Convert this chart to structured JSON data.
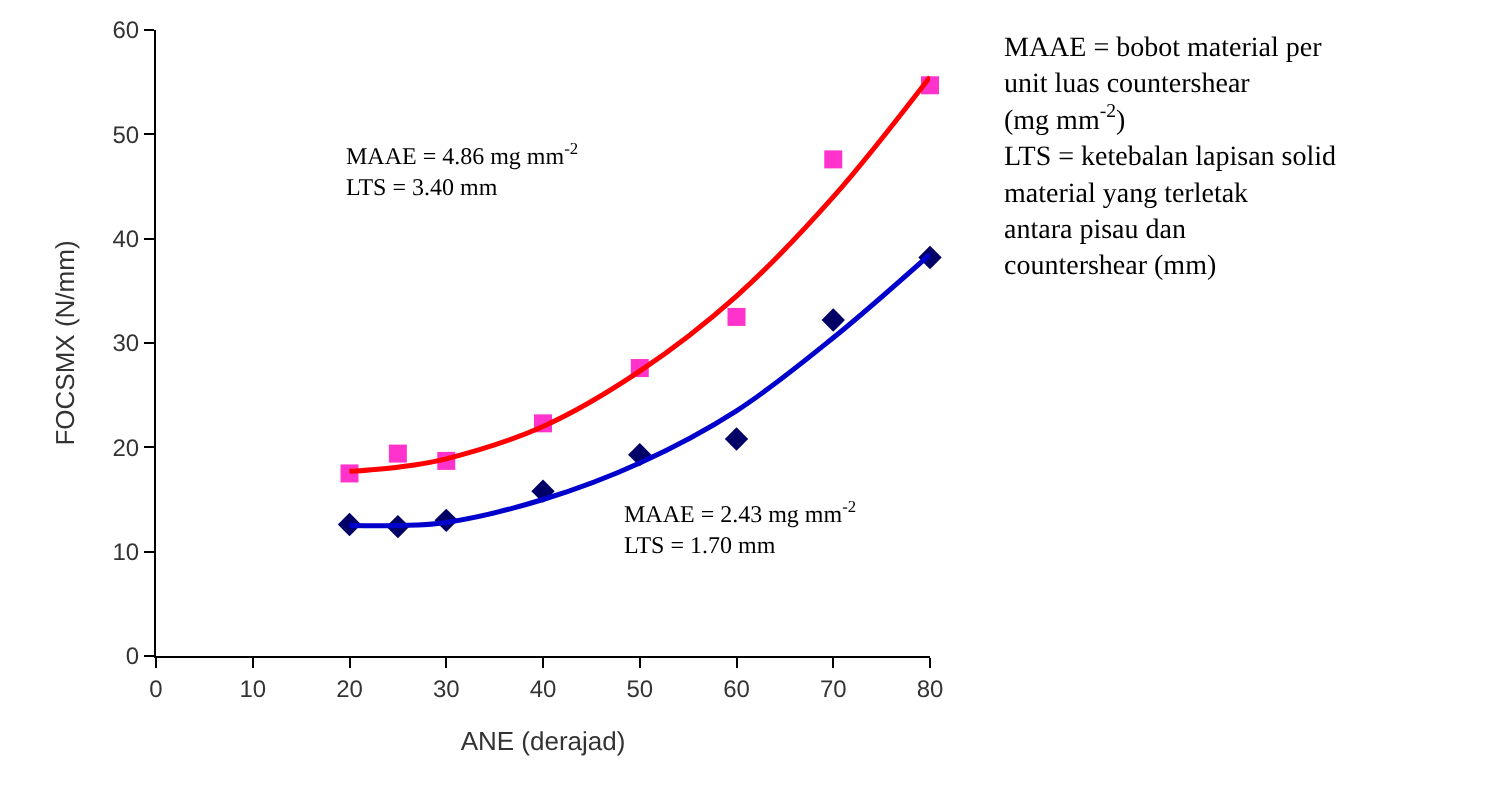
{
  "chart_data": {
    "type": "scatter",
    "xlabel": "ANE (derajad)",
    "ylabel": "FOCSMX (N/mm)",
    "x": [
      20,
      25,
      30,
      40,
      50,
      60,
      70,
      80
    ],
    "series": [
      {
        "color": "#ff33cc",
        "marker": "square",
        "values": [
          17.5,
          19.4,
          18.7,
          22.3,
          27.6,
          32.5,
          47.6,
          54.7
        ]
      },
      {
        "color": "#000066",
        "marker": "diamond",
        "values": [
          12.6,
          12.4,
          13.0,
          15.8,
          19.3,
          20.8,
          32.2,
          38.2
        ]
      },
      {
        "type": "line",
        "color": "#ff0000",
        "marker": "none",
        "x": [
          20,
          25,
          30,
          40,
          50,
          60,
          70,
          80
        ],
        "values": [
          17.7,
          18.1,
          18.9,
          22.0,
          27.3,
          34.5,
          44.0,
          55.5
        ]
      },
      {
        "type": "line",
        "color": "#0000cc",
        "marker": "none",
        "x": [
          20,
          25,
          30,
          40,
          50,
          60,
          70,
          80
        ],
        "values": [
          12.5,
          12.5,
          12.8,
          15.0,
          18.5,
          23.5,
          30.5,
          38.5
        ]
      }
    ],
    "xlim": [
      0,
      80
    ],
    "xticks": [
      0,
      10,
      20,
      30,
      40,
      50,
      60,
      70,
      80
    ],
    "ylim": [
      0,
      60
    ],
    "yticks": [
      0,
      10,
      20,
      30,
      40,
      50,
      60
    ],
    "line_style": "solid",
    "annotations": [
      "MAAE = 4.86 mg mm$^{-2}$\nLTS = 3.40 mm",
      "MAAE = 2.43 mg mm$^{-2}$\nLTS = 1.70 mm",
      "MAAE = bobot material per\nunit luas countershear\n(mg mm$^{-2}$)\nLTS = ketebalan lapisan solid\nmaterial yang terletak\nantara pisau dan\ncountershear (mm)"
    ]
  }
}
